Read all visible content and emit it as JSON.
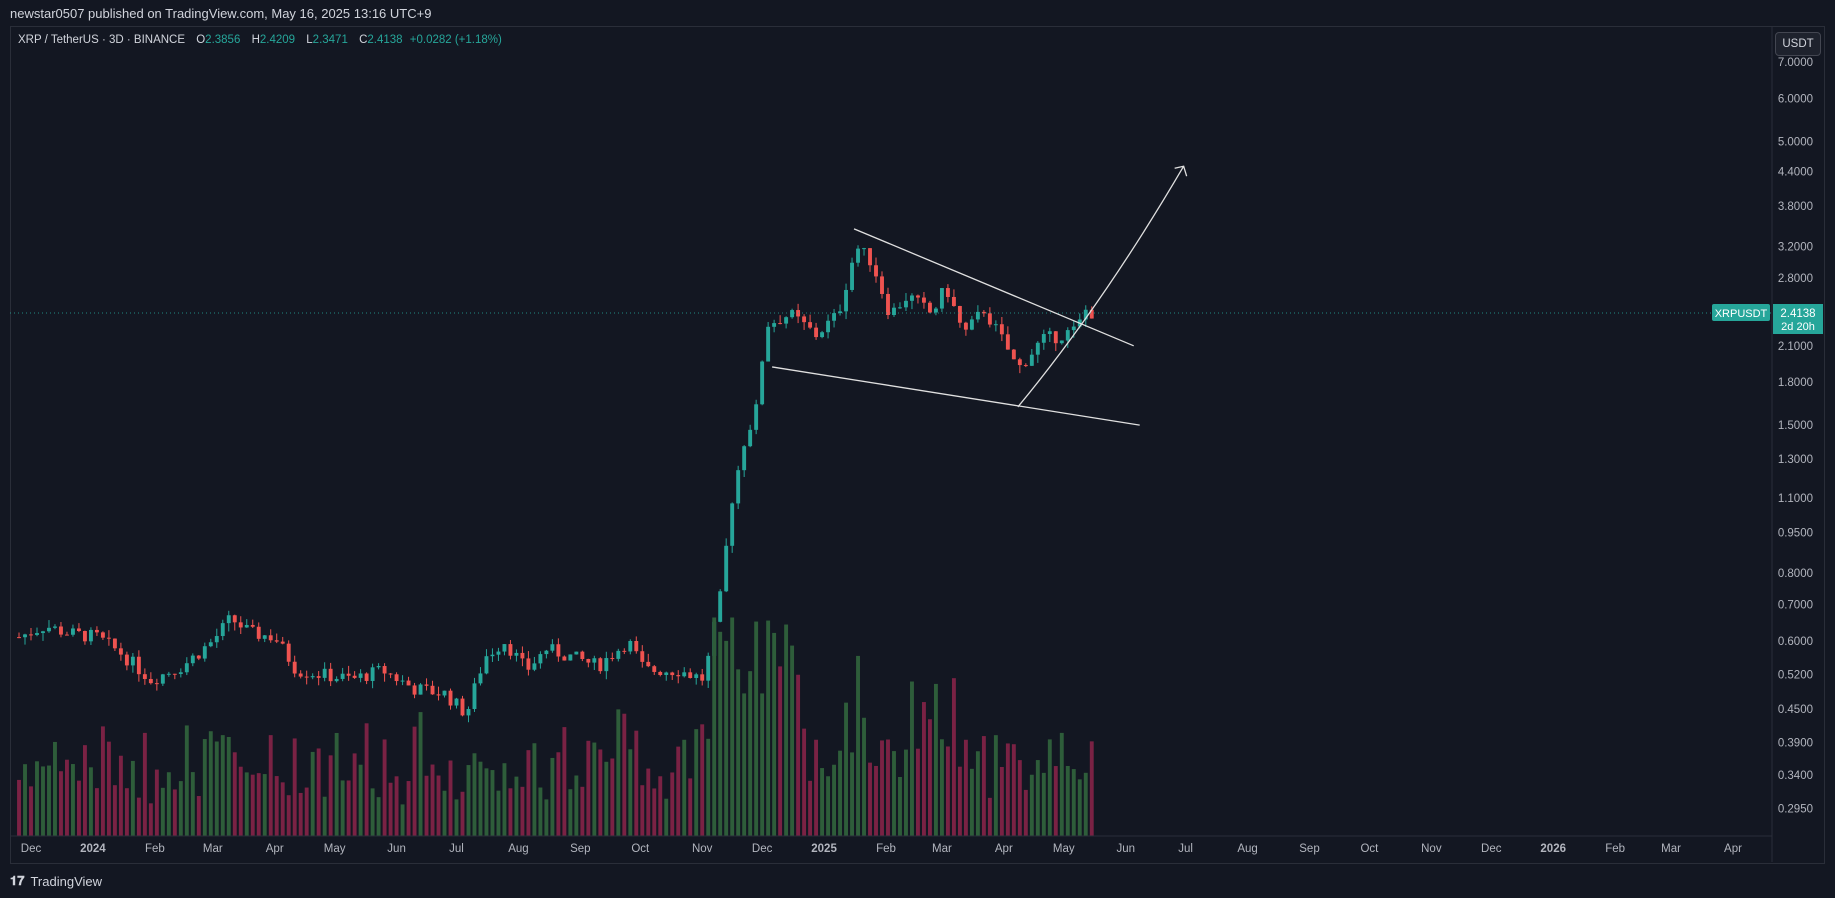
{
  "header": {
    "published_line": "newstar0507 published on TradingView.com, May 16, 2025 13:16 UTC+9"
  },
  "legend": {
    "symbol_line": "XRP / TetherUS · 3D · BINANCE",
    "open_label": "O",
    "open_value": "2.3856",
    "high_label": "H",
    "high_value": "2.4209",
    "low_label": "L",
    "low_value": "2.3471",
    "close_label": "C",
    "close_value": "2.4138",
    "change": "+0.0282 (+1.18%)"
  },
  "currency_button": "USDT",
  "price_tag": {
    "symbol": "XRPUSDT",
    "price": "2.4138",
    "countdown": "2d 20h"
  },
  "footer": {
    "brand": "TradingView"
  },
  "colors": {
    "background": "#131722",
    "up": "#26a69a",
    "down": "#ef5350",
    "volume_up": "#2e5d3a",
    "volume_down": "#7a2244",
    "drawing": "#e0e0e0",
    "price_tag": "#26a69a"
  },
  "chart_data": {
    "type": "candlestick",
    "scale": "log",
    "y_ticks": [
      "7.0000",
      "6.0000",
      "5.0000",
      "4.4000",
      "3.8000",
      "3.2000",
      "2.8000",
      "2.4138",
      "2.1000",
      "1.8000",
      "1.5000",
      "1.3000",
      "1.1000",
      "0.9500",
      "0.8000",
      "0.7000",
      "0.6000",
      "0.5200",
      "0.4500",
      "0.3900",
      "0.3400",
      "0.2950"
    ],
    "y_tick_values": [
      7.0,
      6.0,
      5.0,
      4.4,
      3.8,
      3.2,
      2.8,
      2.4138,
      2.1,
      1.8,
      1.5,
      1.3,
      1.1,
      0.95,
      0.8,
      0.7,
      0.6,
      0.52,
      0.45,
      0.39,
      0.34,
      0.295
    ],
    "x_ticks": [
      "Dec",
      "2024",
      "Feb",
      "Mar",
      "Apr",
      "May",
      "Jun",
      "Jul",
      "Aug",
      "Sep",
      "Oct",
      "Nov",
      "Dec",
      "2025",
      "Feb",
      "Mar",
      "Apr",
      "May",
      "Jun",
      "Jul",
      "Aug",
      "Sep",
      "Oct",
      "Nov",
      "Dec",
      "2026",
      "Feb",
      "Mar",
      "Apr"
    ],
    "x_tick_dates": [
      "2023-12-01",
      "2024-01-01",
      "2024-02-01",
      "2024-03-01",
      "2024-04-01",
      "2024-05-01",
      "2024-06-01",
      "2024-07-01",
      "2024-08-01",
      "2024-09-01",
      "2024-10-01",
      "2024-11-01",
      "2024-12-01",
      "2025-01-01",
      "2025-02-01",
      "2025-03-01",
      "2025-04-01",
      "2025-05-01",
      "2025-06-01",
      "2025-07-01",
      "2025-08-01",
      "2025-09-01",
      "2025-10-01",
      "2025-11-01",
      "2025-12-01",
      "2026-01-01",
      "2026-02-01",
      "2026-03-01",
      "2026-04-01"
    ],
    "candle_keypoints": [
      [
        "2023-11-25",
        0.61
      ],
      [
        "2023-12-08",
        0.64
      ],
      [
        "2023-12-20",
        0.62
      ],
      [
        "2024-01-03",
        0.61
      ],
      [
        "2024-01-15",
        0.57
      ],
      [
        "2024-01-30",
        0.51
      ],
      [
        "2024-02-15",
        0.54
      ],
      [
        "2024-03-01",
        0.6
      ],
      [
        "2024-03-10",
        0.66
      ],
      [
        "2024-03-20",
        0.62
      ],
      [
        "2024-04-01",
        0.61
      ],
      [
        "2024-04-12",
        0.53
      ],
      [
        "2024-04-25",
        0.52
      ],
      [
        "2024-05-10",
        0.51
      ],
      [
        "2024-05-25",
        0.53
      ],
      [
        "2024-06-10",
        0.49
      ],
      [
        "2024-06-25",
        0.48
      ],
      [
        "2024-07-06",
        0.44
      ],
      [
        "2024-07-15",
        0.56
      ],
      [
        "2024-07-25",
        0.6
      ],
      [
        "2024-08-05",
        0.53
      ],
      [
        "2024-08-15",
        0.58
      ],
      [
        "2024-08-28",
        0.56
      ],
      [
        "2024-09-10",
        0.54
      ],
      [
        "2024-09-25",
        0.6
      ],
      [
        "2024-10-03",
        0.53
      ],
      [
        "2024-10-20",
        0.53
      ],
      [
        "2024-11-02",
        0.51
      ],
      [
        "2024-11-10",
        0.72
      ],
      [
        "2024-11-16",
        1.1
      ],
      [
        "2024-11-22",
        1.4
      ],
      [
        "2024-11-28",
        1.6
      ],
      [
        "2024-12-03",
        2.3
      ],
      [
        "2024-12-15",
        2.4
      ],
      [
        "2024-12-28",
        2.2
      ],
      [
        "2025-01-08",
        2.4
      ],
      [
        "2025-01-17",
        3.2
      ],
      [
        "2025-01-25",
        3.0
      ],
      [
        "2025-02-03",
        2.4
      ],
      [
        "2025-02-12",
        2.6
      ],
      [
        "2025-02-24",
        2.4
      ],
      [
        "2025-03-03",
        2.7
      ],
      [
        "2025-03-12",
        2.2
      ],
      [
        "2025-03-22",
        2.45
      ],
      [
        "2025-04-02",
        2.1
      ],
      [
        "2025-04-08",
        1.9
      ],
      [
        "2025-04-20",
        2.15
      ],
      [
        "2025-04-30",
        2.2
      ],
      [
        "2025-05-08",
        2.25
      ],
      [
        "2025-05-11",
        2.45
      ],
      [
        "2025-05-16",
        2.41
      ]
    ],
    "drawings": [
      {
        "type": "trendline",
        "name": "upper",
        "from": [
          "2025-01-16",
          3.45
        ],
        "to": [
          "2025-06-05",
          2.1
        ]
      },
      {
        "type": "trendline",
        "name": "lower",
        "from": [
          "2024-12-06",
          1.92
        ],
        "to": [
          "2025-06-08",
          1.5
        ]
      },
      {
        "type": "curved-arrow",
        "name": "projection",
        "from": [
          "2025-04-08",
          1.62
        ],
        "via": [
          "2025-05-20",
          2.6
        ],
        "to": [
          "2025-06-30",
          4.5
        ]
      }
    ]
  }
}
